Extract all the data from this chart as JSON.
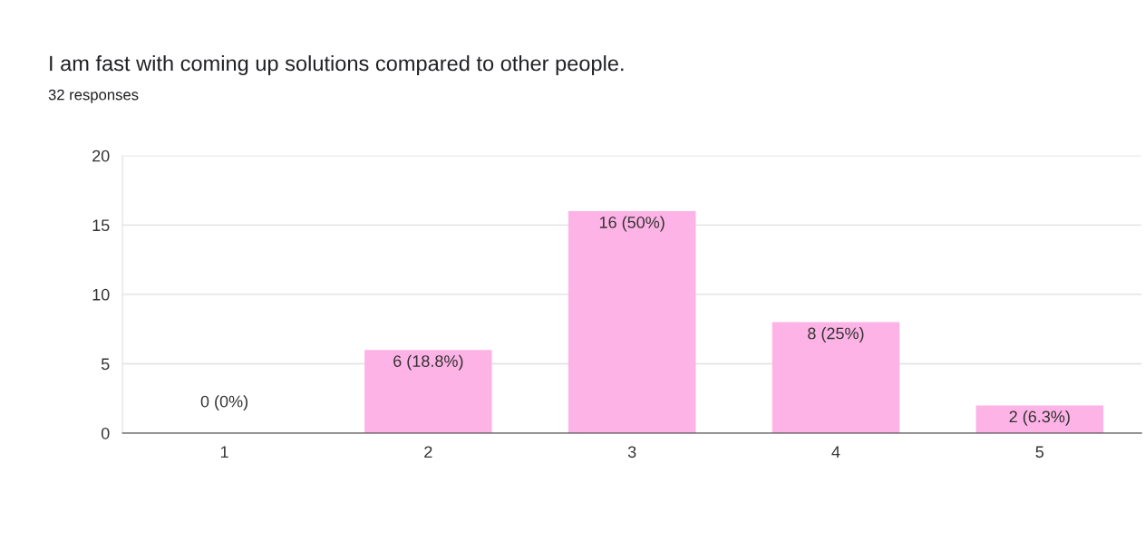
{
  "chart_data": {
    "type": "bar",
    "title": "I am fast with coming up solutions compared to other people.",
    "subtitle": "32 responses",
    "categories": [
      "1",
      "2",
      "3",
      "4",
      "5"
    ],
    "values": [
      0,
      6,
      16,
      8,
      2
    ],
    "value_labels": [
      "0 (0%)",
      "6 (18.8%)",
      "16 (50%)",
      "8 (25%)",
      "2 (6.3%)"
    ],
    "color": "#fdb3e6",
    "ylim": [
      0,
      20
    ],
    "yticks": [
      0,
      5,
      10,
      15,
      20
    ],
    "grid": "y"
  }
}
